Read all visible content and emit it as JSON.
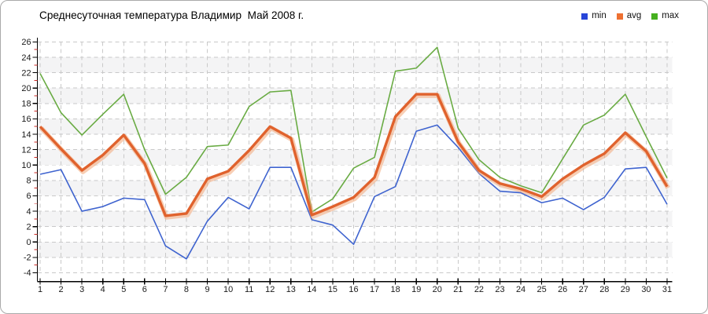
{
  "chart_data": {
    "type": "line",
    "title": "Среднесуточная температура Владимир  Май 2008 г.",
    "categories": [
      1,
      2,
      3,
      4,
      5,
      6,
      7,
      8,
      9,
      10,
      11,
      12,
      13,
      14,
      15,
      16,
      17,
      18,
      19,
      20,
      21,
      22,
      23,
      24,
      25,
      26,
      27,
      28,
      29,
      30,
      31
    ],
    "ylim": [
      -4,
      26
    ],
    "ytick_step": 2,
    "yminor_step": 1,
    "grid": true,
    "legend_position": "top-right",
    "series": [
      {
        "name": "min",
        "color": "#3e63cf",
        "stroke_width": 1.6,
        "values": [
          8.8,
          9.4,
          4.0,
          4.6,
          5.7,
          5.5,
          -0.5,
          -2.2,
          2.7,
          5.8,
          4.3,
          9.7,
          9.7,
          2.9,
          2.2,
          -0.3,
          5.9,
          7.2,
          14.4,
          15.2,
          12.3,
          8.9,
          6.6,
          6.4,
          5.1,
          5.7,
          4.2,
          5.8,
          9.5,
          9.7,
          4.9
        ]
      },
      {
        "name": "avg",
        "color": "#e0622d",
        "stroke_width": 3.4,
        "halo_color": "#f3a878",
        "values": [
          15.0,
          12.1,
          9.3,
          11.3,
          13.9,
          10.2,
          3.4,
          3.7,
          8.2,
          9.2,
          11.9,
          15.0,
          13.5,
          3.5,
          4.6,
          5.8,
          8.4,
          16.3,
          19.2,
          19.2,
          13.0,
          9.3,
          7.6,
          6.9,
          5.9,
          8.2,
          10.0,
          11.5,
          14.2,
          11.8,
          7.2
        ]
      },
      {
        "name": "max",
        "color": "#69ab43",
        "stroke_width": 1.6,
        "values": [
          21.9,
          16.8,
          13.9,
          16.6,
          19.2,
          12.0,
          6.2,
          8.4,
          12.4,
          12.6,
          17.6,
          19.5,
          19.7,
          3.9,
          5.6,
          9.6,
          11.0,
          22.2,
          22.6,
          25.3,
          14.8,
          10.7,
          8.4,
          7.3,
          6.4,
          10.8,
          15.2,
          16.5,
          19.2,
          13.7,
          8.3
        ]
      }
    ],
    "style": {
      "band_shade": "#f4f4f5",
      "band_white": "#ffffff",
      "grid_color": "#c9c9c9",
      "axis_color": "#000000",
      "minor_tick_color": "#cf2b26",
      "label_color": "#1a1a1a"
    }
  },
  "legend": {
    "items": [
      {
        "label": "min",
        "color": "#2745d9"
      },
      {
        "label": "avg",
        "color": "#ee7031"
      },
      {
        "label": "max",
        "color": "#46b01f"
      }
    ]
  }
}
